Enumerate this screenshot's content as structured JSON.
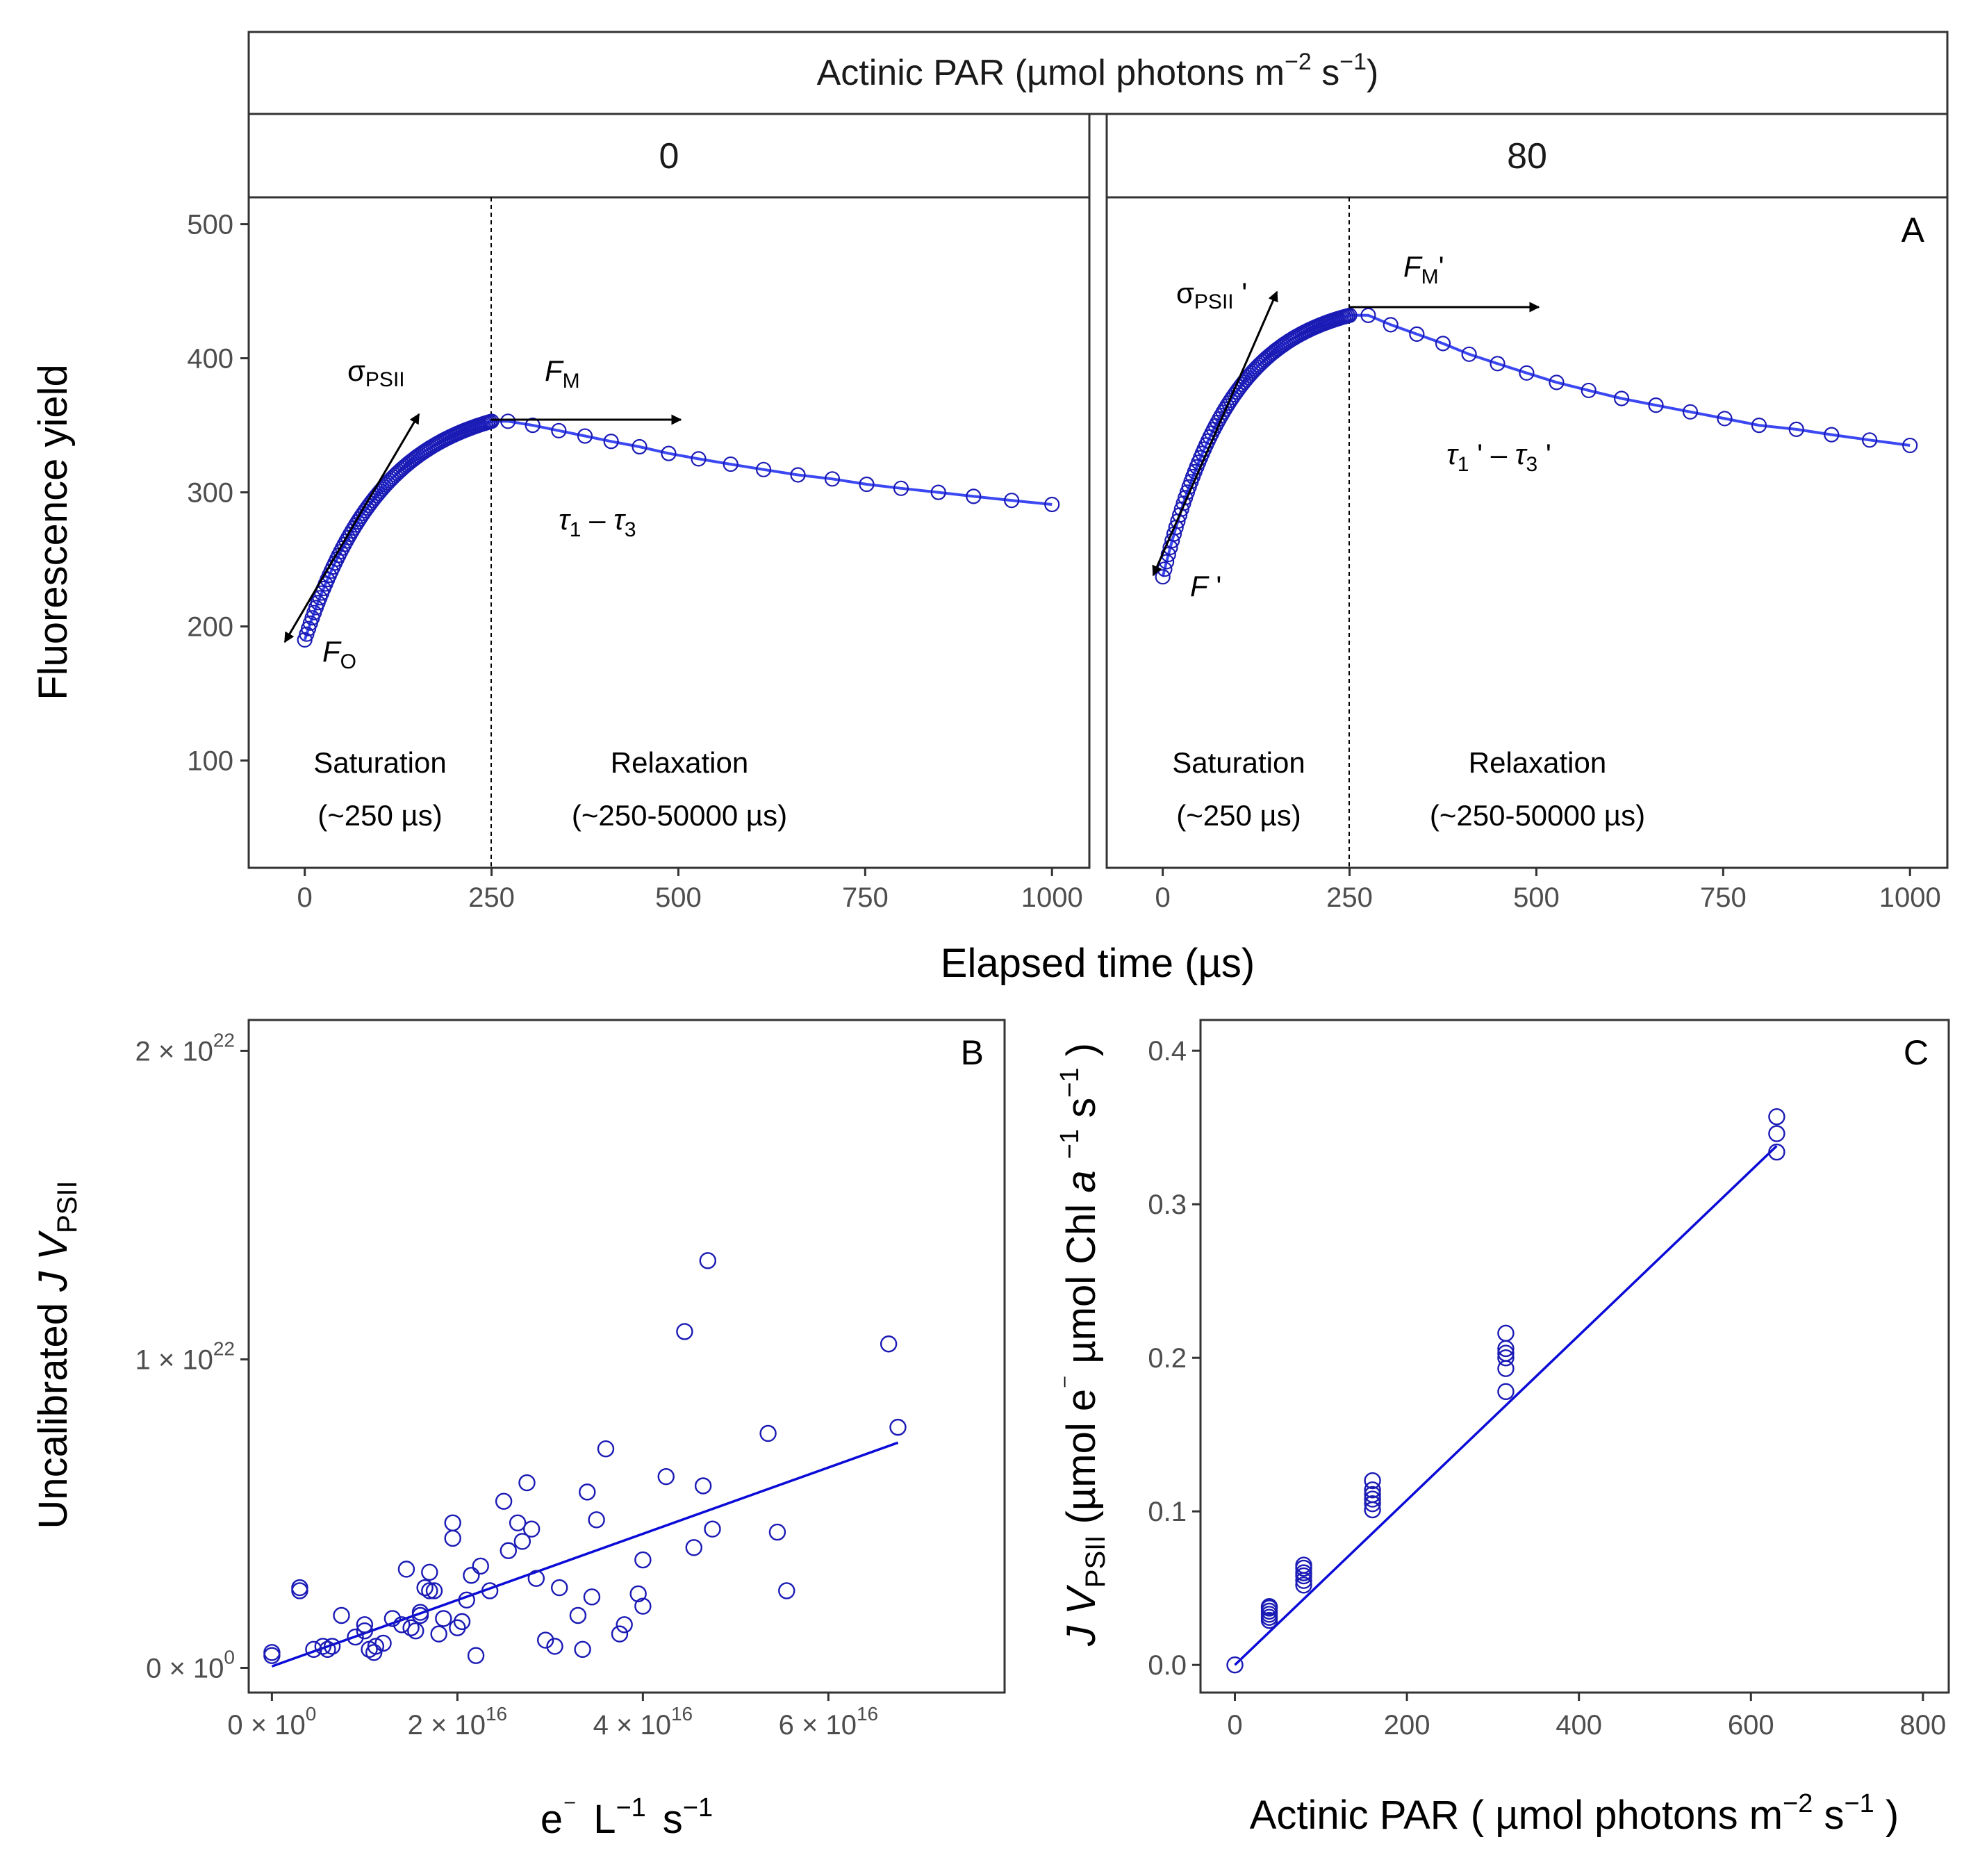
{
  "chart_data": [
    {
      "type": "scatter",
      "panel": "A",
      "facet_header": "Actinic PAR (µmol photons m⁻² s⁻¹)",
      "facets": [
        "0",
        "80"
      ],
      "xlabel": "Elapsed time (µs)",
      "ylabel": "Fluorescence yield",
      "xlim": [
        -75,
        1050
      ],
      "ylim": [
        20,
        520
      ],
      "x_ticks": [
        0,
        250,
        500,
        750,
        1000
      ],
      "y_ticks": [
        100,
        200,
        300,
        400,
        500
      ],
      "grid": false,
      "fit_line": true,
      "annotations": {
        "facet0": {
          "sigma": "σ",
          "sigma_sub": "PSII",
          "fm": "F",
          "fm_sub": "M",
          "fo": "F",
          "fo_sub": "O",
          "tau": "τ",
          "tau_sub1": "1",
          "tau_dash": " – ",
          "tau_sub3": "3",
          "sat_label": "Saturation",
          "sat_time": "(~250 µs)",
          "rel_label": "Relaxation",
          "rel_time": "(~250-50000 µs)"
        },
        "facet1": {
          "sigma": "σ",
          "sigma_sub": "PSII",
          "sigma_prime": " '",
          "fm": "F",
          "fm_sub": "M",
          "fm_prime": "'",
          "f": "F",
          "f_prime": " '",
          "tau": "τ",
          "tau_sub1": "1",
          "tau_prime": " ' – ",
          "tau_sub3": "3",
          "tau_prime2": " '",
          "sat_label": "Saturation",
          "sat_time": "(~250 µs)",
          "rel_label": "Relaxation",
          "rel_time": "(~250-50000 µs)"
        }
      },
      "series": [
        {
          "facet": "0",
          "saturation": {
            "t_start": 0,
            "t_end": 250,
            "n": 100,
            "f_start": 190,
            "f_end": 353,
            "k": 0.0095
          },
          "relaxation_x": [
            272,
            305,
            340,
            375,
            410,
            448,
            487,
            527,
            570,
            614,
            660,
            706,
            752,
            798,
            848,
            895,
            946,
            1000
          ],
          "relaxation_y": [
            353,
            350,
            346,
            342,
            338,
            334,
            329,
            325,
            321,
            317,
            313,
            310,
            306,
            303,
            300,
            297,
            294,
            291
          ]
        },
        {
          "facet": "80",
          "saturation": {
            "t_start": 0,
            "t_end": 250,
            "n": 100,
            "f_start": 237,
            "f_end": 432,
            "k": 0.011
          },
          "relaxation_x": [
            275,
            305,
            340,
            375,
            410,
            448,
            487,
            527,
            570,
            614,
            660,
            706,
            752,
            798,
            848,
            895,
            946,
            1000
          ],
          "relaxation_y": [
            432,
            425,
            418,
            411,
            403,
            396,
            389,
            382,
            376,
            370,
            365,
            360,
            355,
            350,
            347,
            343,
            339,
            335
          ]
        }
      ]
    },
    {
      "type": "scatter",
      "panel": "B",
      "xlabel_parts": [
        "e",
        "⁻",
        "L",
        "−1",
        "s",
        "−1"
      ],
      "ylabel_parts": [
        "Uncalibrated ",
        "J V",
        "PSII"
      ],
      "xlim": [
        -2500000000000000.0,
        7.9e+16
      ],
      "ylim": [
        -8e+20,
        2.1e+22
      ],
      "x_ticks": [
        0,
        2e+16,
        4e+16,
        6e+16
      ],
      "x_tick_labels": [
        {
          "mantissa": "0 × 10",
          "exp": "0"
        },
        {
          "mantissa": "2 × 10",
          "exp": "16"
        },
        {
          "mantissa": "4 × 10",
          "exp": "16"
        },
        {
          "mantissa": "6 × 10",
          "exp": "16"
        }
      ],
      "y_ticks": [
        0,
        1e+22,
        2e+22
      ],
      "y_tick_labels": [
        {
          "mantissa": "0 × 10",
          "exp": "0"
        },
        {
          "mantissa": "1 × 10",
          "exp": "22"
        },
        {
          "mantissa": "2 × 10",
          "exp": "22"
        }
      ],
      "fit": {
        "x": [
          0,
          6.75e+16
        ],
        "y": [
          5e+19,
          7.3e+21
        ]
      },
      "points_x_1e16": [
        0.0,
        0.0,
        0.3,
        0.3,
        0.45,
        0.55,
        0.6,
        0.65,
        0.75,
        0.9,
        1.0,
        1.0,
        1.05,
        1.1,
        1.12,
        1.2,
        1.3,
        1.4,
        1.45,
        1.5,
        1.55,
        1.6,
        1.6,
        1.65,
        1.7,
        1.7,
        1.75,
        1.8,
        1.85,
        1.95,
        1.95,
        2.0,
        2.05,
        2.1,
        2.15,
        2.2,
        2.25,
        2.35,
        2.5,
        2.55,
        2.65,
        2.7,
        2.75,
        2.8,
        2.85,
        2.95,
        3.05,
        3.1,
        3.3,
        3.35,
        3.4,
        3.45,
        3.5,
        3.6,
        3.75,
        3.8,
        3.95,
        4.0,
        4.0,
        4.25,
        4.45,
        4.55,
        4.65,
        4.7,
        4.75,
        5.35,
        5.45,
        5.55,
        6.65,
        6.75
      ],
      "points_y_1e22": [
        0.04,
        0.05,
        0.25,
        0.26,
        0.06,
        0.07,
        0.06,
        0.07,
        0.17,
        0.1,
        0.12,
        0.14,
        0.06,
        0.05,
        0.07,
        0.08,
        0.16,
        0.14,
        0.32,
        0.13,
        0.12,
        0.17,
        0.18,
        0.26,
        0.31,
        0.25,
        0.25,
        0.11,
        0.16,
        0.42,
        0.47,
        0.13,
        0.15,
        0.22,
        0.3,
        0.04,
        0.33,
        0.25,
        0.54,
        0.38,
        0.47,
        0.41,
        0.6,
        0.45,
        0.29,
        0.09,
        0.07,
        0.26,
        0.17,
        0.06,
        0.57,
        0.23,
        0.48,
        0.71,
        0.11,
        0.14,
        0.24,
        0.2,
        0.35,
        0.62,
        1.09,
        0.39,
        0.59,
        1.32,
        0.45,
        0.76,
        0.44,
        0.25,
        1.05,
        0.78
      ]
    },
    {
      "type": "scatter",
      "panel": "C",
      "xlabel_parts": [
        "Actinic PAR ( µmol photons  m",
        "−2",
        "  s",
        "−1",
        " )"
      ],
      "ylabel_parts": [
        "J V",
        "PSII",
        " (µmol e",
        "⁻",
        "  µmol Chl ",
        "a",
        " ",
        "−1",
        "  s",
        "−1",
        " )"
      ],
      "xlim": [
        -40,
        830
      ],
      "ylim": [
        -0.018,
        0.42
      ],
      "x_ticks": [
        0,
        200,
        400,
        600,
        800
      ],
      "y_ticks": [
        0.0,
        0.1,
        0.2,
        0.3,
        0.4
      ],
      "y_tick_labels": [
        "0.0",
        "0.1",
        "0.2",
        "0.3",
        "0.4"
      ],
      "fit": {
        "x": [
          0,
          630
        ],
        "y": [
          0.0,
          0.338
        ]
      },
      "points_x": [
        0,
        40,
        40,
        40,
        40,
        40,
        40,
        80,
        80,
        80,
        80,
        80,
        80,
        160,
        160,
        160,
        160,
        160,
        160,
        315,
        315,
        315,
        315,
        315,
        315,
        630,
        630,
        630
      ],
      "points_y": [
        0.0,
        0.029,
        0.031,
        0.033,
        0.035,
        0.037,
        0.038,
        0.052,
        0.055,
        0.058,
        0.06,
        0.063,
        0.065,
        0.101,
        0.105,
        0.108,
        0.111,
        0.114,
        0.12,
        0.178,
        0.193,
        0.2,
        0.203,
        0.206,
        0.216,
        0.334,
        0.346,
        0.357
      ]
    }
  ],
  "panel_labels": {
    "a": "A",
    "b": "B",
    "c": "C"
  },
  "colors": {
    "points": "#1a1ab5",
    "fit_a": "#3b48f2",
    "fit_bc": "#0b0bd8",
    "frame": "#333333"
  }
}
